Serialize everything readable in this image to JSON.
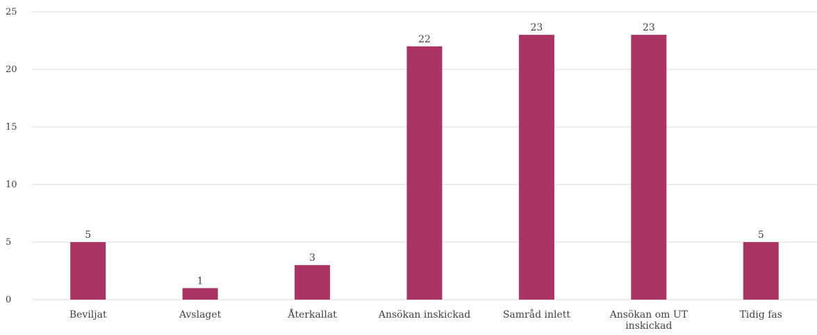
{
  "chart_data": {
    "type": "bar",
    "categories": [
      [
        "Beviljat"
      ],
      [
        "Avslaget"
      ],
      [
        "Återkallat"
      ],
      [
        "Ansökan inskickad"
      ],
      [
        "Samråd inlett"
      ],
      [
        "Ansökan om UT",
        "inskickad"
      ],
      [
        "Tidig fas"
      ]
    ],
    "values": [
      5,
      1,
      3,
      22,
      23,
      23,
      5
    ],
    "ylim": [
      0,
      25
    ],
    "yticks": [
      0,
      5,
      10,
      15,
      20,
      25
    ],
    "grid": true,
    "data_labels": true,
    "title": "",
    "xlabel": "",
    "ylabel": "",
    "colors": {
      "bar": "#AA3464",
      "grid": "#D9D9D9",
      "text": "#404040"
    }
  }
}
